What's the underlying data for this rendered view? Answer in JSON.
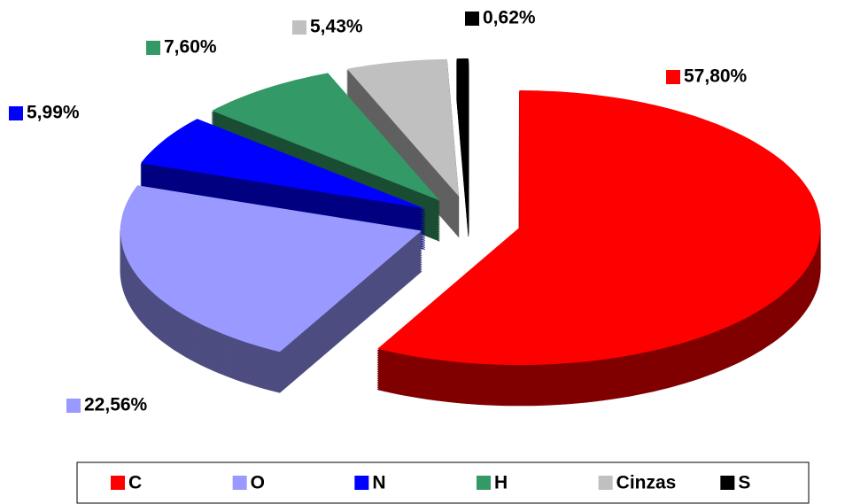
{
  "chart_data": {
    "type": "pie",
    "categories": [
      "C",
      "O",
      "N",
      "H",
      "Cinzas",
      "S"
    ],
    "values": [
      57.8,
      22.56,
      5.99,
      7.6,
      5.43,
      0.62
    ],
    "value_labels": [
      "57,80%",
      "22,56%",
      "5,99%",
      "7,60%",
      "5,43%",
      "0,62%"
    ],
    "colors": [
      "#ff0000",
      "#9999ff",
      "#0000ff",
      "#339966",
      "#c0c0c0",
      "#000000"
    ],
    "legend": "bottom"
  }
}
